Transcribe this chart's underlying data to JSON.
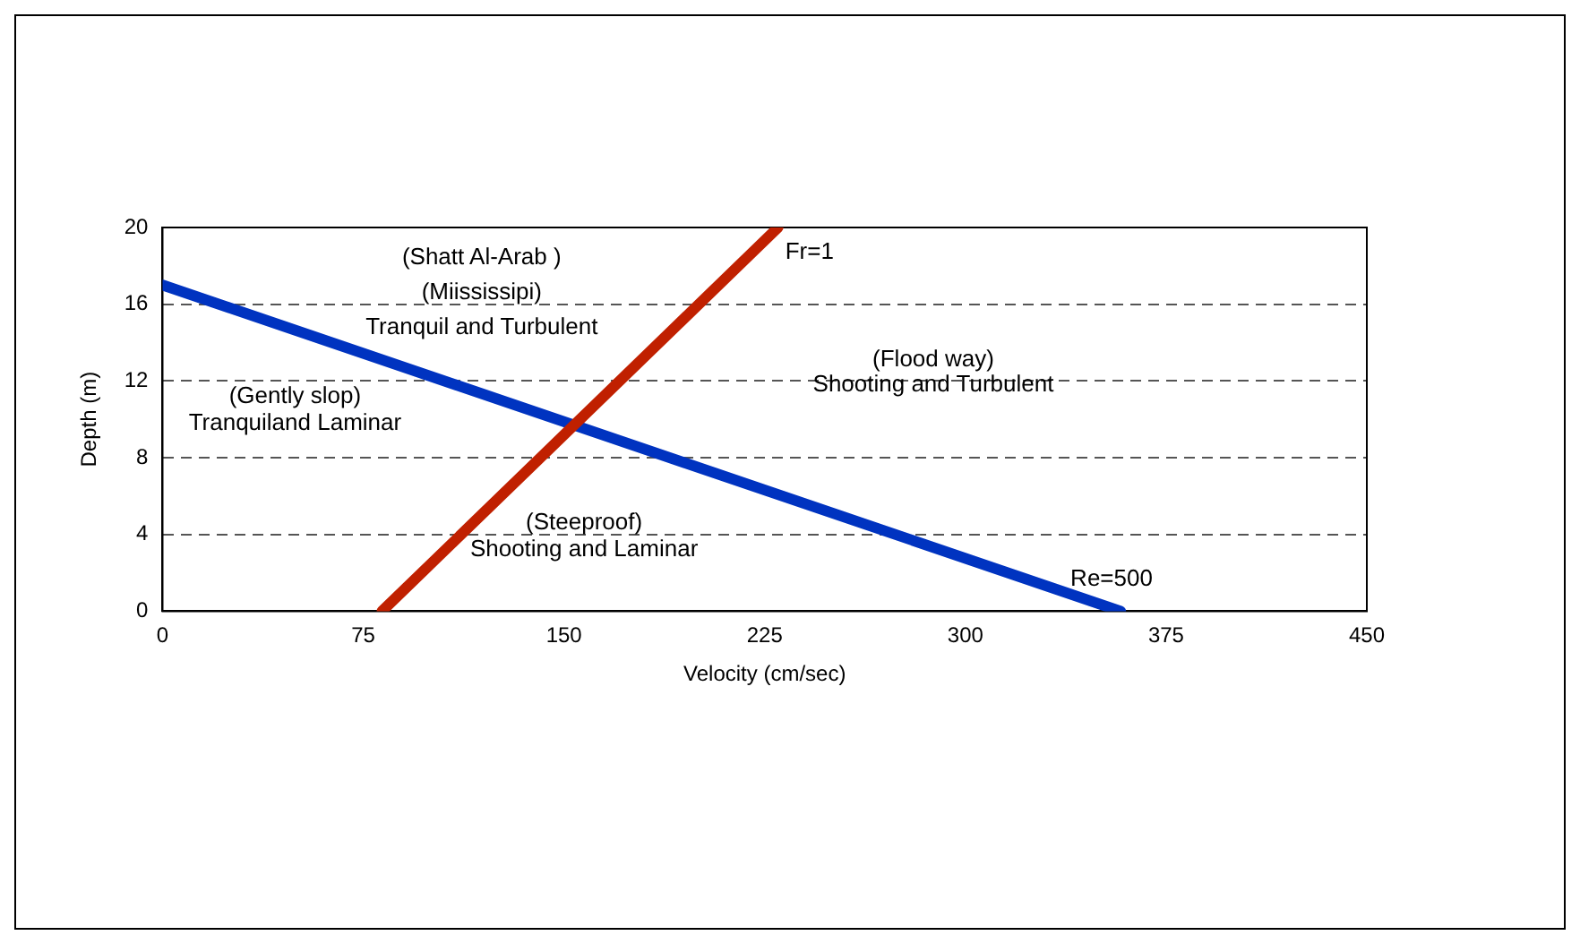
{
  "chart_data": {
    "type": "line",
    "xlabel": "Velocity (cm/sec)",
    "ylabel": "Depth (m)",
    "series": [
      {
        "name": "Fr=1",
        "color": "#c02000",
        "x": [
          82,
          230
        ],
        "values": [
          0,
          20
        ]
      },
      {
        "name": "Re=500",
        "color": "#0033c0",
        "x": [
          0,
          358
        ],
        "values": [
          17,
          0
        ]
      }
    ],
    "xlim": [
      0,
      450
    ],
    "xticks": [
      0,
      75,
      150,
      225,
      300,
      375,
      450
    ],
    "ylim": [
      0,
      20
    ],
    "yticks": [
      0,
      4,
      8,
      12,
      16,
      20
    ],
    "grid": "y",
    "legend": false,
    "marker": "none",
    "line_style": "solid",
    "annotations": [
      "(Shatt Al-Arab )",
      "(Miississipi)",
      "Tranquil and Turbulent",
      "(Gently slop)",
      "Tranquiland Laminar",
      "(Flood way)",
      "Shooting and Turbulent",
      "(Steeproof)",
      "Shooting and Laminar"
    ]
  }
}
